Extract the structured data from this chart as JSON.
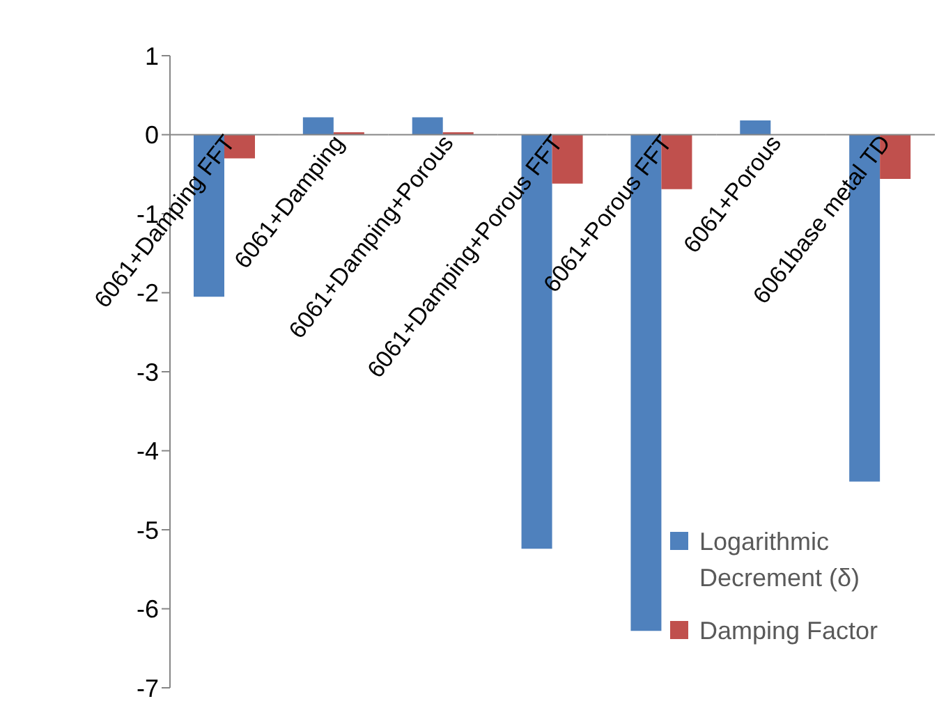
{
  "chart_data": {
    "type": "bar",
    "categories": [
      "6061+Damping FFT",
      "6061+Damping",
      "6061+Damping+Porous",
      "6061+Damping+Porous FFT",
      "6061+Porous FFT",
      "6061+Porous",
      "6061base metal TD"
    ],
    "series": [
      {
        "name": "Logarithmic Decrement (δ)",
        "color": "#4f81bd",
        "values": [
          -2.05,
          0.22,
          0.22,
          -5.24,
          -6.28,
          0.18,
          -4.39
        ]
      },
      {
        "name": "Damping Factor",
        "color": "#c0504d",
        "values": [
          -0.3,
          0.03,
          0.03,
          -0.62,
          -0.69,
          0.0,
          -0.56
        ]
      }
    ],
    "ylim": [
      -7,
      1
    ],
    "yticks": [
      1,
      0,
      -1,
      -2,
      -3,
      -4,
      -5,
      -6,
      -7
    ],
    "grid": false,
    "legend": "bottom right"
  }
}
